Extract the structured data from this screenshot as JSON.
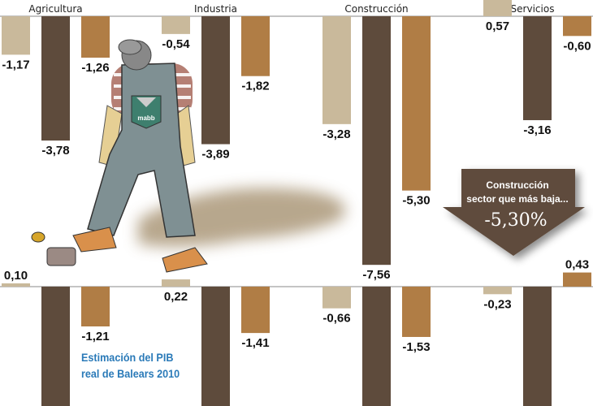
{
  "chart_data": {
    "type": "bar",
    "title": "Estimación del PIB real de Balears 2010",
    "categories": [
      "Agricultura",
      "Industria",
      "Construcción",
      "Servicios"
    ],
    "series_colors": [
      "#c9b99b",
      "#5e4b3c",
      "#b07d45"
    ],
    "panels": [
      {
        "values": [
          [
            -1.17,
            -3.78,
            -1.26
          ],
          [
            -0.54,
            -3.89,
            -1.82
          ],
          [
            -3.28,
            -7.56,
            -5.3
          ],
          [
            0.57,
            -3.16,
            -0.6
          ]
        ],
        "labels": [
          [
            "-1,17",
            "-3,78",
            "-1,26"
          ],
          [
            "-0,54",
            "-3,89",
            "-1,82"
          ],
          [
            "-3,28",
            "-7,56",
            "-5,30"
          ],
          [
            "0,57",
            "-3,16",
            "-0,60"
          ]
        ]
      },
      {
        "values": [
          [
            0.1,
            null,
            -1.21
          ],
          [
            0.22,
            null,
            -1.41
          ],
          [
            -0.66,
            null,
            -1.53
          ],
          [
            -0.23,
            null,
            0.43
          ]
        ],
        "labels": [
          [
            "0,10",
            "",
            "-1,21"
          ],
          [
            "0,22",
            "",
            "-1,41"
          ],
          [
            "-0,66",
            "",
            "-1,53"
          ],
          [
            "-0,23",
            "",
            "0,43"
          ]
        ]
      }
    ],
    "grid": false,
    "legend": "none"
  },
  "title_line1": "Estimación del PIB",
  "title_line2": "real de Balears 2010",
  "callout": {
    "line1": "Construcción",
    "line2": "sector que más baja...",
    "value": "-5,30%"
  },
  "illustration": {
    "pocket_logo": "mabb"
  }
}
